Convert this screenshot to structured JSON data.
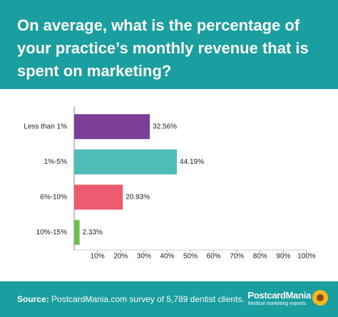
{
  "chart_data": {
    "type": "bar",
    "orientation": "horizontal",
    "title": "On average, what is the percentage of your practice’s monthly revenue that is spent on marketing?",
    "categories": [
      "Less than 1%",
      "1%-5%",
      "6%-10%",
      "10%-15%"
    ],
    "values": [
      32.56,
      44.19,
      20.93,
      2.33
    ],
    "value_labels": [
      "32.56%",
      "44.19%",
      "20.93%",
      "2.33%"
    ],
    "colors": [
      "#7b3f98",
      "#4fbdb6",
      "#ec5b6f",
      "#6cbf4b"
    ],
    "xlim": [
      0,
      100
    ],
    "xticks": [
      {
        "value": 10,
        "label": "10%"
      },
      {
        "value": 20,
        "label": "20%"
      },
      {
        "value": 30,
        "label": "30%"
      },
      {
        "value": 40,
        "label": "40%"
      },
      {
        "value": 50,
        "label": "50%"
      },
      {
        "value": 60,
        "label": "60%"
      },
      {
        "value": 70,
        "label": "70%"
      },
      {
        "value": 80,
        "label": "80%"
      },
      {
        "value": 90,
        "label": "90%"
      },
      {
        "value": 100,
        "label": "100%"
      }
    ],
    "grid": false
  },
  "footer": {
    "source_label": "Source:",
    "source_text": "PostcardMania.com survey of 5,789 dentist clients.",
    "logo": "PostcardMania",
    "tagline": "Medical marketing experts"
  }
}
